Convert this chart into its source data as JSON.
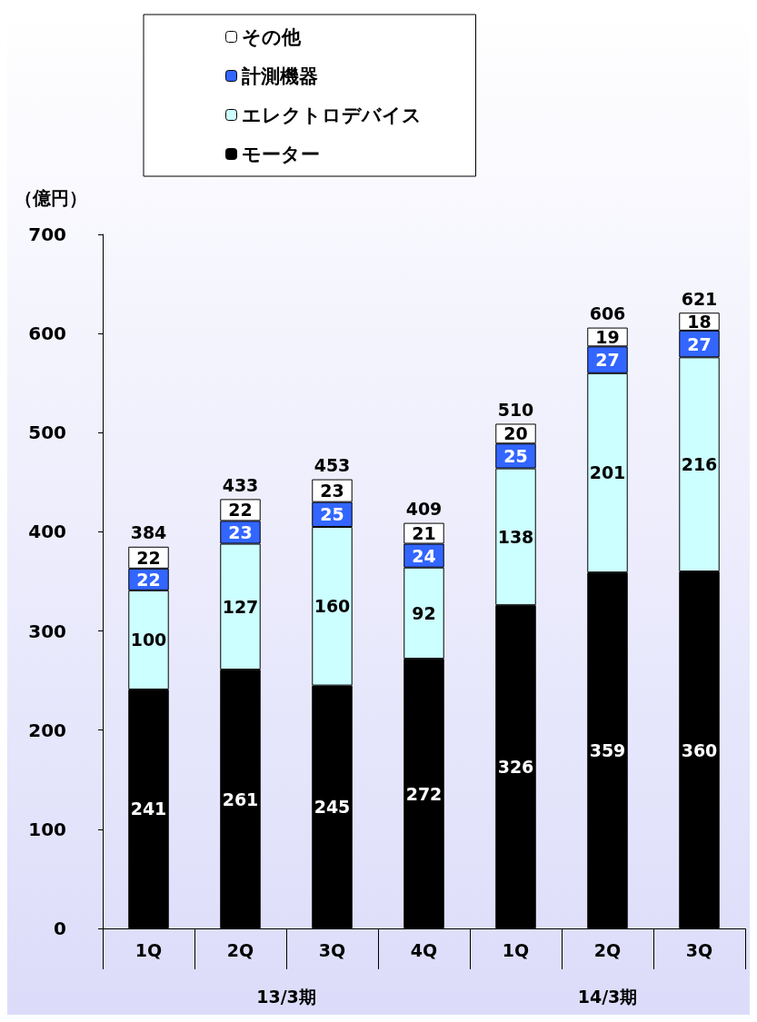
{
  "chart_data": {
    "type": "bar",
    "stacked": true,
    "ylabel": "（億円）",
    "categories": [
      "1Q",
      "2Q",
      "3Q",
      "4Q",
      "1Q",
      "2Q",
      "3Q"
    ],
    "series": [
      {
        "name": "モーター",
        "color": "#000000",
        "values": [
          241,
          261,
          245,
          272,
          326,
          359,
          360
        ]
      },
      {
        "name": "エレクトロデバイス",
        "color": "#ccffff",
        "values": [
          100,
          127,
          160,
          92,
          138,
          201,
          216
        ]
      },
      {
        "name": "計測機器",
        "color": "#3366ff",
        "values": [
          22,
          23,
          25,
          24,
          25,
          27,
          27
        ]
      },
      {
        "name": "その他",
        "color": "#ffffff",
        "values": [
          22,
          22,
          23,
          21,
          20,
          19,
          18
        ]
      }
    ],
    "totals": [
      "384",
      "433",
      "453",
      "409",
      "510",
      "606",
      "621"
    ],
    "annotations": [
      "13/3期",
      "14/3期"
    ],
    "ylim": [
      0,
      700
    ],
    "yticks": [
      0,
      100,
      200,
      300,
      400,
      500,
      600,
      700
    ],
    "data_labels": true,
    "grid": false,
    "legend": "top left"
  }
}
